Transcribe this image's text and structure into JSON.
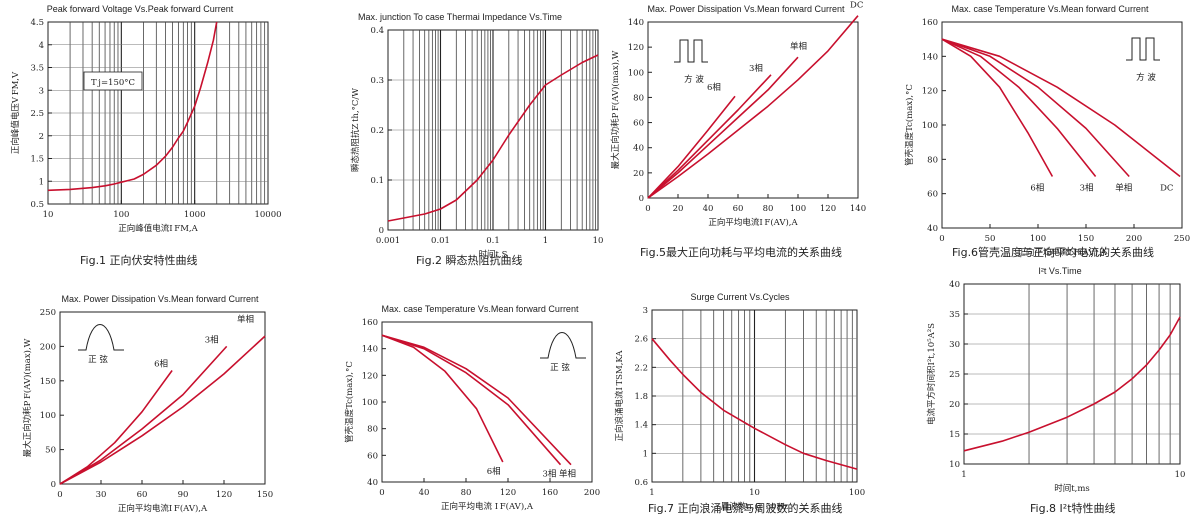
{
  "charts": [
    {
      "id": "fig1",
      "caption": "Fig.1 正向伏安特性曲线",
      "chart_data": {
        "type": "line",
        "title": "Peak forward Voltage Vs.Peak forward Current",
        "xlabel": "正向峰值电流I FM,A",
        "ylabel": "正向峰值电压V FM,V",
        "xscale": "log",
        "xlim": [
          10,
          10000
        ],
        "ylim": [
          0.5,
          4.5
        ],
        "xticks": [
          "10",
          "100",
          "1000",
          "10000"
        ],
        "yticks": [
          "0.5",
          "1",
          "1.5",
          "2",
          "2.5",
          "3",
          "3.5",
          "4",
          "4.5"
        ],
        "annotations": [
          "T j=150°C"
        ],
        "series": [
          {
            "x": [
              10,
              20,
              40,
              60,
              80,
              100,
              150,
              200,
              300,
              400,
              500,
              600,
              700,
              800,
              1000,
              1200,
              1500,
              1800,
              2000
            ],
            "y": [
              0.8,
              0.82,
              0.86,
              0.9,
              0.94,
              0.98,
              1.05,
              1.15,
              1.35,
              1.55,
              1.75,
              1.95,
              2.1,
              2.3,
              2.65,
              3.05,
              3.6,
              4.1,
              4.5
            ]
          }
        ]
      }
    },
    {
      "id": "fig2",
      "caption": "Fig.2 瞬态热阻抗曲线",
      "chart_data": {
        "type": "line",
        "title": "Max. junction To case Thermai Impedance Vs.Time",
        "xlabel": "时间t,S",
        "ylabel": "瞬态热阻抗Z th,°C/W",
        "xscale": "log",
        "xlim": [
          0.001,
          10
        ],
        "ylim": [
          0,
          0.4
        ],
        "xticks": [
          "0.001",
          "0.01",
          "0.1",
          "1",
          "10"
        ],
        "yticks": [
          "0",
          "0.1",
          "0.2",
          "0.3",
          "0.4"
        ],
        "series": [
          {
            "x": [
              0.001,
              0.002,
              0.005,
              0.01,
              0.02,
              0.05,
              0.1,
              0.2,
              0.5,
              1,
              2,
              5,
              10
            ],
            "y": [
              0.018,
              0.024,
              0.032,
              0.042,
              0.06,
              0.1,
              0.14,
              0.19,
              0.25,
              0.29,
              0.31,
              0.335,
              0.35
            ]
          }
        ]
      }
    },
    {
      "id": "fig5",
      "caption": "Fig.5最大正向功耗与平均电流的关系曲线",
      "chart_data": {
        "type": "line",
        "title": "Max. Power Dissipation Vs.Mean forward Current",
        "xlabel": "正向平均电流I F(AV),A",
        "ylabel": "最大正向功耗P F(AV)(max),W",
        "xlim": [
          0,
          140
        ],
        "ylim": [
          0,
          140
        ],
        "xticks": [
          "0",
          "20",
          "40",
          "60",
          "80",
          "100",
          "120",
          "140"
        ],
        "yticks": [
          "0",
          "20",
          "40",
          "60",
          "80",
          "100",
          "120",
          "140"
        ],
        "inset_label": "方 波",
        "series": [
          {
            "name": "6相",
            "x": [
              0,
              20,
              40,
              58
            ],
            "y": [
              0,
              25,
              54,
              81
            ]
          },
          {
            "name": "3相",
            "x": [
              0,
              20,
              40,
              60,
              82
            ],
            "y": [
              0,
              22,
              46,
              70,
              98
            ]
          },
          {
            "name": "单相",
            "x": [
              0,
              20,
              40,
              60,
              80,
              100
            ],
            "y": [
              0,
              20,
              42,
              64,
              86,
              112
            ]
          },
          {
            "name": "DC",
            "x": [
              0,
              20,
              40,
              60,
              80,
              100,
              120,
              140
            ],
            "y": [
              0,
              17,
              35,
              54,
              73,
              94,
              117,
              145
            ]
          }
        ]
      }
    },
    {
      "id": "fig6",
      "caption": "Fig.6管壳温度与正向平均电流的关系曲线",
      "chart_data": {
        "type": "line",
        "title": "Max. case Temperature Vs.Mean forward Current",
        "xlabel": "正向平均电流I F(AV),A",
        "ylabel": "管壳温度Tc(max),°C",
        "xlim": [
          0,
          250
        ],
        "ylim": [
          40,
          160
        ],
        "xticks": [
          "0",
          "50",
          "100",
          "150",
          "200",
          "250"
        ],
        "yticks": [
          "40",
          "60",
          "80",
          "100",
          "120",
          "140",
          "160"
        ],
        "inset_label": "方 波",
        "series": [
          {
            "name": "6相",
            "x": [
              0,
              30,
              60,
              90,
              115
            ],
            "y": [
              150,
              140,
              122,
              95,
              70
            ]
          },
          {
            "name": "3相",
            "x": [
              0,
              40,
              80,
              120,
              160
            ],
            "y": [
              150,
              140,
              122,
              98,
              70
            ]
          },
          {
            "name": "单相",
            "x": [
              0,
              50,
              100,
              150,
              195
            ],
            "y": [
              150,
              140,
              122,
              98,
              70
            ]
          },
          {
            "name": "DC",
            "x": [
              0,
              60,
              120,
              180,
              248
            ],
            "y": [
              150,
              140,
              122,
              100,
              70
            ]
          }
        ]
      }
    },
    {
      "id": "fig3",
      "caption": "",
      "chart_data": {
        "type": "line",
        "title": "Max. Power Dissipation Vs.Mean forward Current",
        "xlabel": "正向平均电流I F(AV),A",
        "ylabel": "最大正向功耗P F(AV)(max),W",
        "xlim": [
          0,
          150
        ],
        "ylim": [
          0,
          250
        ],
        "xticks": [
          "0",
          "30",
          "60",
          "90",
          "120",
          "150"
        ],
        "yticks": [
          "0",
          "50",
          "100",
          "150",
          "200",
          "250"
        ],
        "inset_label": "正 弦",
        "series": [
          {
            "name": "6相",
            "x": [
              0,
              20,
              40,
              60,
              82
            ],
            "y": [
              0,
              25,
              60,
              105,
              165
            ]
          },
          {
            "name": "3相",
            "x": [
              0,
              30,
              60,
              90,
              122
            ],
            "y": [
              0,
              35,
              80,
              130,
              200
            ]
          },
          {
            "name": "单相",
            "x": [
              0,
              30,
              60,
              90,
              120,
              150
            ],
            "y": [
              0,
              32,
              70,
              112,
              160,
              215
            ]
          }
        ]
      }
    },
    {
      "id": "fig4",
      "caption": "",
      "chart_data": {
        "type": "line",
        "title": "Max. case Temperature Vs.Mean forward Current",
        "xlabel": "正向平均电流 I F(AV),A",
        "ylabel": "管壳温度Tc(max),°C",
        "xlim": [
          0,
          200
        ],
        "ylim": [
          40,
          160
        ],
        "xticks": [
          "0",
          "40",
          "80",
          "120",
          "160",
          "200"
        ],
        "yticks": [
          "40",
          "60",
          "80",
          "100",
          "120",
          "140",
          "160"
        ],
        "inset_label": "正 弦",
        "series": [
          {
            "name": "6相",
            "x": [
              0,
              30,
              60,
              90,
              115
            ],
            "y": [
              150,
              141,
              123,
              95,
              55
            ]
          },
          {
            "name": "3相",
            "x": [
              0,
              40,
              80,
              120,
              170
            ],
            "y": [
              150,
              140,
              122,
              98,
              53
            ]
          },
          {
            "name": "单相",
            "x": [
              0,
              40,
              80,
              120,
              180
            ],
            "y": [
              150,
              141,
              125,
              103,
              53
            ]
          }
        ]
      }
    },
    {
      "id": "fig7",
      "caption": "Fig.7 正向浪涌电流与周波数的关系曲线",
      "chart_data": {
        "type": "line",
        "title": "Surge Current Vs.Cycles",
        "xlabel": "周波数n,@ 50Hz",
        "ylabel": "正向浪涌电流I TSM,KA",
        "xscale": "log",
        "xlim": [
          1,
          100
        ],
        "ylim": [
          0.6,
          3
        ],
        "xticks": [
          "1",
          "10",
          "100"
        ],
        "yticks": [
          "0.6",
          "1",
          "1.4",
          "1.8",
          "2.2",
          "2.6",
          "3"
        ],
        "series": [
          {
            "x": [
              1,
              1.5,
              2,
              3,
              5,
              10,
              20,
              30,
              50,
              100
            ],
            "y": [
              2.6,
              2.3,
              2.1,
              1.85,
              1.6,
              1.35,
              1.12,
              1.0,
              0.9,
              0.78
            ]
          }
        ]
      }
    },
    {
      "id": "fig8",
      "caption": "Fig.8 I²t特性曲线",
      "chart_data": {
        "type": "line",
        "title": "I²t Vs.Time",
        "xlabel": "时间t,ms",
        "ylabel": "电流平方时间积I²t,10⁵A²S",
        "xscale": "log",
        "xlim": [
          1,
          10
        ],
        "ylim": [
          10,
          40
        ],
        "xticks": [
          "1",
          "10"
        ],
        "yticks": [
          "10",
          "15",
          "20",
          "25",
          "30",
          "35",
          "40"
        ],
        "series": [
          {
            "x": [
              1,
              1.5,
              2,
              3,
              4,
              5,
              6,
              7,
              8,
              9,
              10
            ],
            "y": [
              12.2,
              13.8,
              15.3,
              17.8,
              20,
              22,
              24.2,
              26.5,
              29,
              31.5,
              34.5
            ]
          }
        ]
      }
    }
  ]
}
